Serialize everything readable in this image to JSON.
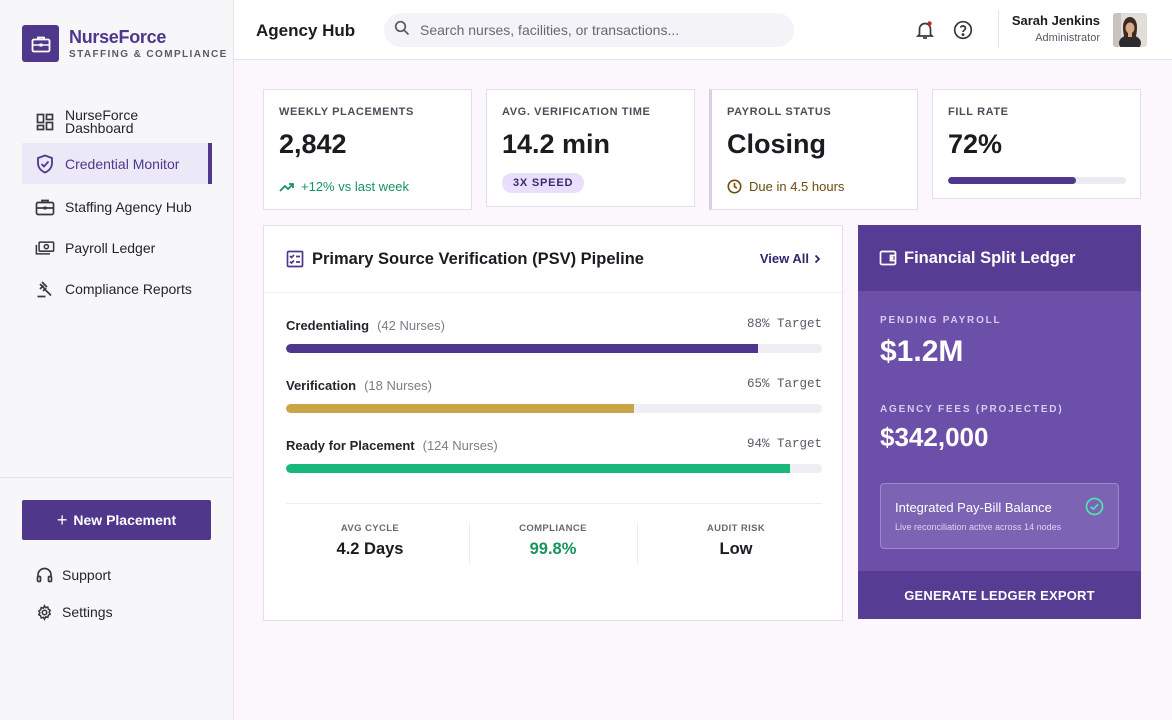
{
  "brand": {
    "name": "NurseForce",
    "subtitle": "STAFFING & COMPLIANCE",
    "accent": "#4f378b"
  },
  "sidebar": {
    "items": [
      {
        "label": "NurseForce Dashboard",
        "icon": "dashboard-icon"
      },
      {
        "label": "Credential Monitor",
        "icon": "shield-check-icon",
        "active": true
      },
      {
        "label": "Staffing Agency Hub",
        "icon": "briefcase-icon"
      },
      {
        "label": "Payroll Ledger",
        "icon": "money-icon"
      },
      {
        "label": "Compliance Reports",
        "icon": "gavel-icon"
      }
    ],
    "new_button": "New Placement",
    "support": "Support",
    "settings": "Settings"
  },
  "header": {
    "title": "Agency Hub",
    "search_placeholder": "Search nurses, facilities, or transactions...",
    "user_name": "Sarah Jenkins",
    "user_role": "Administrator"
  },
  "stats": {
    "placements": {
      "label": "WEEKLY PLACEMENTS",
      "value": "2,842",
      "delta": "+12% vs last week"
    },
    "verification": {
      "label": "AVG. VERIFICATION TIME",
      "value": "14.2 min",
      "badge": "3X SPEED"
    },
    "payroll": {
      "label": "PAYROLL STATUS",
      "value": "Closing",
      "due": "Due in 4.5 hours"
    },
    "fill": {
      "label": "FILL RATE",
      "value": "72%",
      "fraction": 0.72
    }
  },
  "pipeline": {
    "title": "Primary Source Verification (PSV) Pipeline",
    "view_all": "View All",
    "rows": [
      {
        "name": "Credentialing",
        "count": "(42 Nurses)",
        "target": "88% Target",
        "fraction": 0.88,
        "color": "#4f378b"
      },
      {
        "name": "Verification",
        "count": "(18 Nurses)",
        "target": "65% Target",
        "fraction": 0.65,
        "color": "#c9a548"
      },
      {
        "name": "Ready for Placement",
        "count": "(124 Nurses)",
        "target": "94% Target",
        "fraction": 0.94,
        "color": "#17b87a"
      }
    ],
    "metrics": [
      {
        "label": "AVG CYCLE",
        "value": "4.2 Days",
        "color": "#1c1b22"
      },
      {
        "label": "COMPLIANCE",
        "value": "99.8%",
        "color": "#16935f"
      },
      {
        "label": "AUDIT RISK",
        "value": "Low",
        "color": "#1c1b22"
      }
    ]
  },
  "ledger": {
    "title": "Financial Split Ledger",
    "pending_label": "PENDING PAYROLL",
    "pending_value": "$1.2M",
    "fees_label": "AGENCY FEES (PROJECTED)",
    "fees_value": "$342,000",
    "balance_title": "Integrated Pay-Bill Balance",
    "balance_sub": "Live reconciliation active across 14 nodes",
    "export_label": "GENERATE LEDGER EXPORT"
  }
}
